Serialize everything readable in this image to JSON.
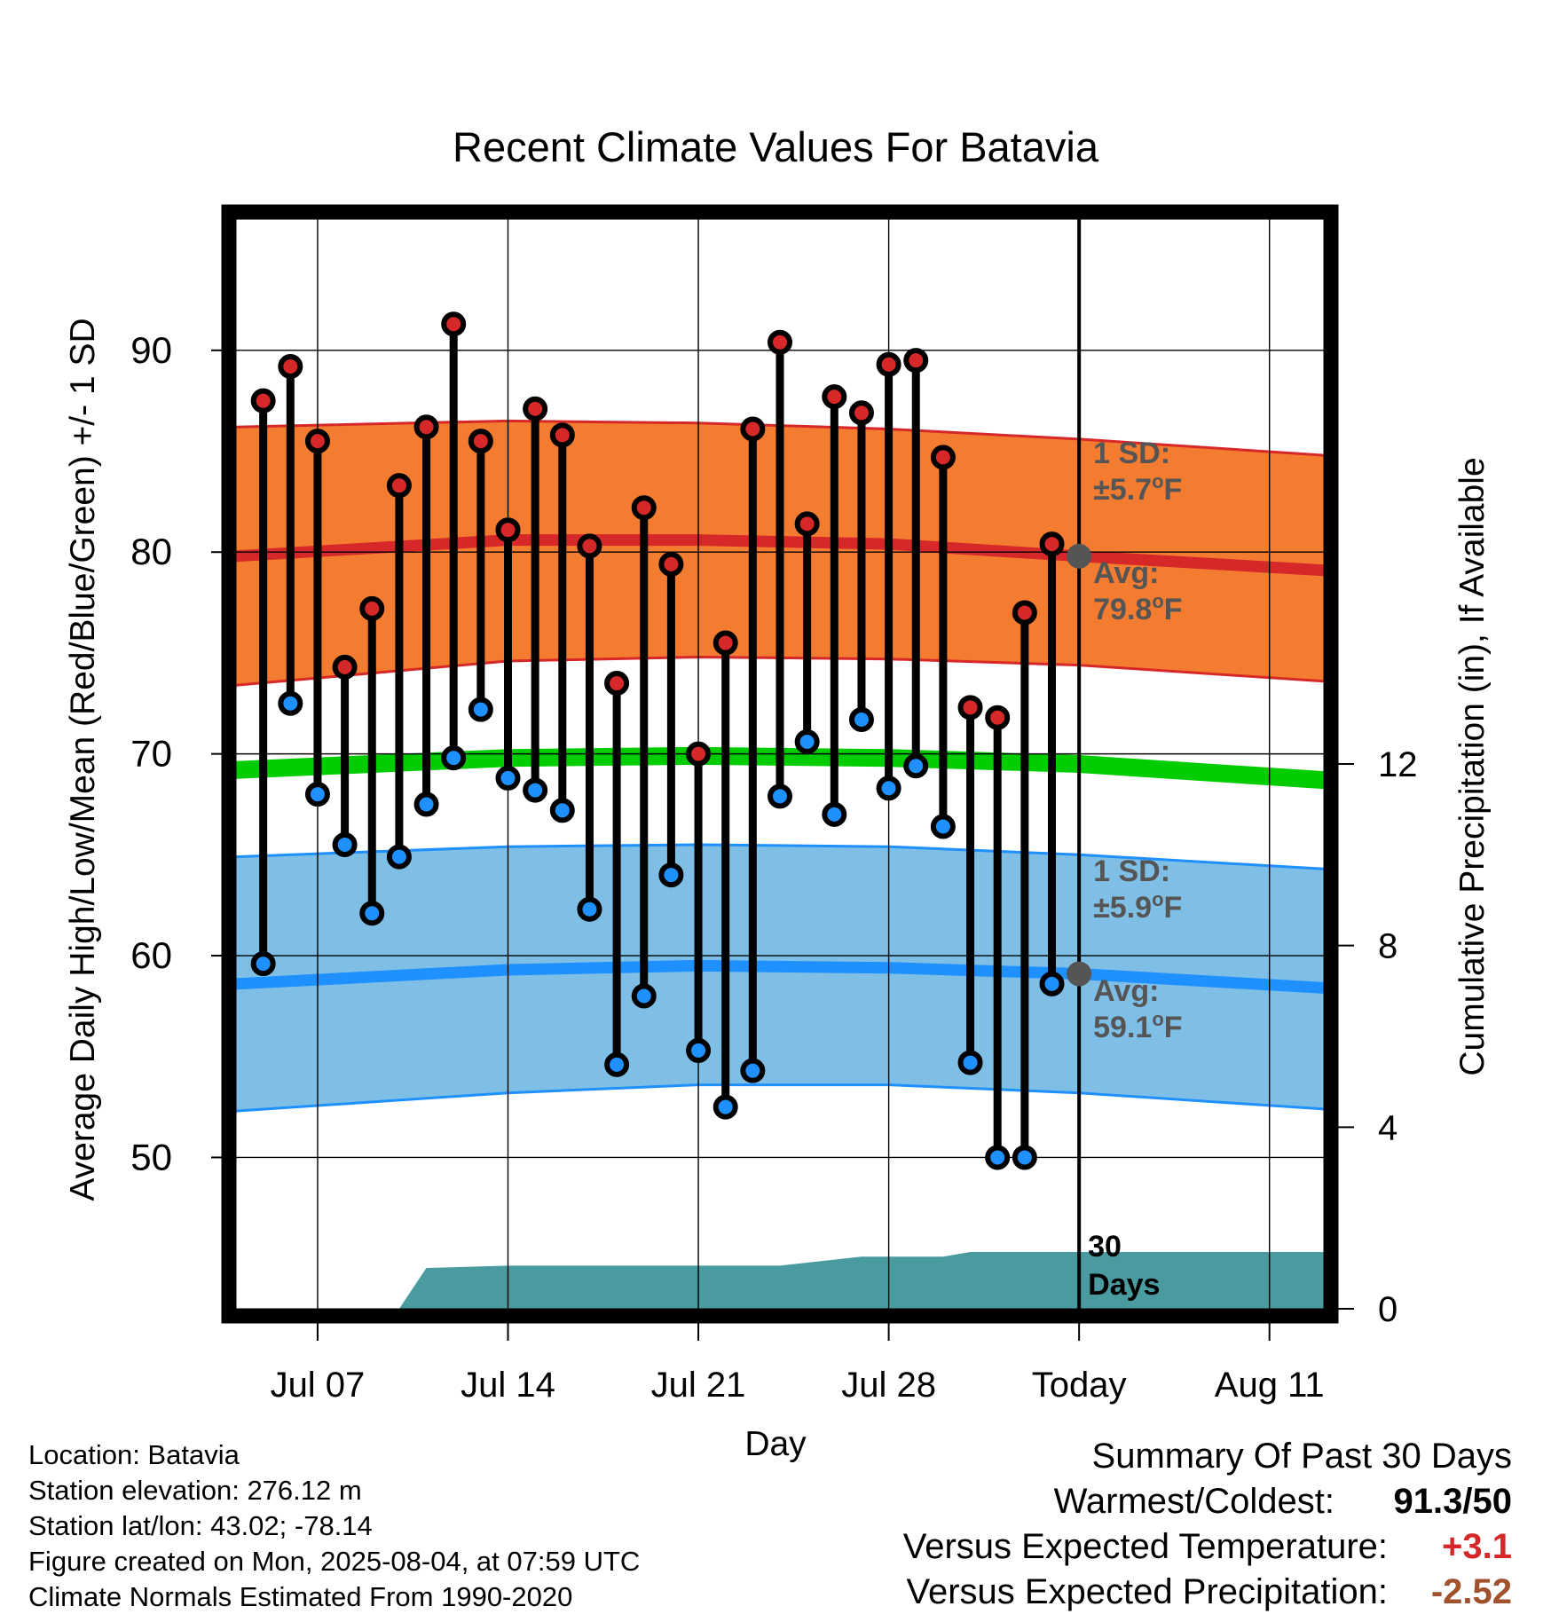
{
  "chart_data": {
    "type": "line",
    "title": "Recent Climate Values For Batavia",
    "xlabel": "Day",
    "ylabel": "Average Daily High/Low/Mean (Red/Blue/Green) +/- 1 SD",
    "y2label": "Cumulative Precipitation (in), If Available",
    "ylim": [
      42.5,
      96.5
    ],
    "y2lim": [
      0,
      24
    ],
    "y_ticks": [
      50,
      60,
      70,
      80,
      90
    ],
    "y2_ticks": [
      0,
      4,
      8,
      12
    ],
    "x_days_range": [
      "Jul 04",
      "Aug 13"
    ],
    "x_ticks": [
      {
        "label": "Jul 07",
        "date": "Jul 07"
      },
      {
        "label": "Jul 14",
        "date": "Jul 14"
      },
      {
        "label": "Jul 21",
        "date": "Jul 21"
      },
      {
        "label": "Jul 28",
        "date": "Jul 28"
      },
      {
        "label": "Today",
        "date": "Aug 04"
      },
      {
        "label": "Aug 11",
        "date": "Aug 11"
      }
    ],
    "daily": {
      "dates": [
        "Jul 05",
        "Jul 06",
        "Jul 07",
        "Jul 08",
        "Jul 09",
        "Jul 10",
        "Jul 11",
        "Jul 12",
        "Jul 13",
        "Jul 14",
        "Jul 15",
        "Jul 16",
        "Jul 17",
        "Jul 18",
        "Jul 19",
        "Jul 20",
        "Jul 21",
        "Jul 22",
        "Jul 23",
        "Jul 24",
        "Jul 25",
        "Jul 26",
        "Jul 27",
        "Jul 28",
        "Jul 29",
        "Jul 30",
        "Jul 31",
        "Aug 01",
        "Aug 02",
        "Aug 03"
      ],
      "highs": [
        87.5,
        89.2,
        85.5,
        74.3,
        77.2,
        83.3,
        86.2,
        91.3,
        85.5,
        81.1,
        87.1,
        85.8,
        80.3,
        73.5,
        82.2,
        79.4,
        70.0,
        75.5,
        86.1,
        90.4,
        81.4,
        87.7,
        86.9,
        89.3,
        89.5,
        84.7,
        72.3,
        71.8,
        77.0,
        80.4
      ],
      "lows": [
        59.6,
        72.5,
        68.0,
        65.5,
        62.1,
        64.9,
        67.5,
        69.8,
        72.2,
        68.8,
        68.2,
        67.2,
        62.3,
        54.6,
        58.0,
        64.0,
        55.3,
        52.5,
        54.3,
        67.9,
        70.6,
        67.0,
        71.7,
        68.3,
        69.4,
        66.4,
        54.7,
        50.0,
        50.0,
        58.6
      ]
    },
    "normals": {
      "dates": [
        "Jul 04",
        "Jul 14",
        "Jul 21",
        "Jul 28",
        "Aug 04",
        "Aug 13"
      ],
      "avg_high": [
        79.8,
        80.6,
        80.6,
        80.4,
        79.8,
        79.1
      ],
      "high_sd_upper": [
        86.2,
        86.5,
        86.4,
        86.1,
        85.6,
        84.8
      ],
      "high_sd_lower": [
        73.4,
        74.6,
        74.8,
        74.7,
        74.4,
        73.6
      ],
      "avg_mean": [
        69.2,
        69.8,
        69.9,
        69.8,
        69.5,
        68.7
      ],
      "avg_low": [
        58.6,
        59.3,
        59.5,
        59.4,
        59.1,
        58.4
      ],
      "low_sd_upper": [
        64.9,
        65.4,
        65.5,
        65.4,
        65.0,
        64.3
      ],
      "low_sd_lower": [
        52.3,
        53.2,
        53.6,
        53.6,
        53.2,
        52.4
      ]
    },
    "precip": {
      "dates": [
        "Jul 04",
        "Jul 10",
        "Jul 11",
        "Jul 14",
        "Jul 21",
        "Jul 24",
        "Jul 27",
        "Jul 30",
        "Jul 31",
        "Aug 04",
        "Aug 13"
      ],
      "cumulative": [
        0,
        0,
        0.9,
        0.95,
        0.95,
        0.95,
        1.15,
        1.15,
        1.25,
        1.25,
        1.25
      ]
    },
    "annotations": {
      "high_sd_label": "1 SD:",
      "high_sd_value": "±5.7",
      "high_avg_label": "Avg:",
      "high_avg_value": "79.8",
      "low_sd_label": "1 SD:",
      "low_sd_value": "±5.9",
      "low_avg_label": "Avg:",
      "low_avg_value": "59.1",
      "degree_unit": "o",
      "temp_unit": "F",
      "days_number": "30",
      "days_word": "Days"
    },
    "colors": {
      "high_band": "#f47c30",
      "high_band_edge": "#d62828",
      "high_avg": "#d62828",
      "mean": "#00cc00",
      "low_band": "#7fbfe6",
      "low_band_edge": "#1e90ff",
      "low_avg": "#1e90ff",
      "precip": "#4a9ba0",
      "high_dot": "#d62828",
      "low_dot": "#1e90ff",
      "today_dot": "#555555",
      "annotation_text": "#555555"
    },
    "legend": "none",
    "grid": true
  },
  "info": {
    "location": "Location: Batavia",
    "elevation": "Station elevation: 276.12 m",
    "latlon": "Station lat/lon: 43.02; -78.14",
    "created": "Figure created on Mon, 2025-08-04, at 07:59 UTC",
    "normals": "Climate Normals Estimated From 1990-2020"
  },
  "summary": {
    "title": "Summary Of Past 30 Days",
    "warmest_label": "Warmest/Coldest:",
    "warmest_value": "91.3/50",
    "temp_label": "Versus Expected Temperature:",
    "temp_value": "+3.1",
    "temp_color": "#d62828",
    "precip_label": "Versus Expected Precipitation:",
    "precip_value": "-2.52",
    "precip_color": "#a0522d"
  }
}
